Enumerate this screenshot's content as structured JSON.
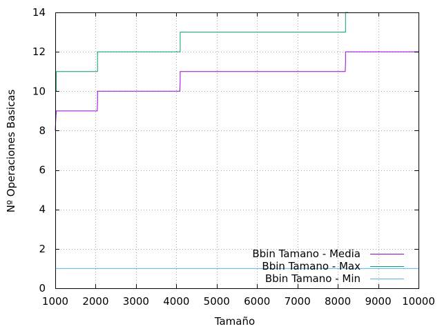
{
  "chart_data": {
    "type": "line",
    "xlabel": "Tamaño",
    "ylabel": "Nº Operaciones Basicas",
    "xlim": [
      1000,
      10000
    ],
    "ylim": [
      0,
      14
    ],
    "xticks": [
      1000,
      2000,
      3000,
      4000,
      5000,
      6000,
      7000,
      8000,
      9000,
      10000
    ],
    "yticks": [
      0,
      2,
      4,
      6,
      8,
      10,
      12,
      14
    ],
    "grid": true,
    "legend_position": "bottom-right",
    "series": [
      {
        "name": "Bbin Tamano - Media",
        "color": "#9400d3",
        "x": [
          1000,
          1000,
          1024,
          1024,
          2040,
          2048,
          2048,
          4088,
          4096,
          4096,
          8184,
          8192,
          8192,
          10000
        ],
        "y": [
          8.0,
          8.0,
          9.0,
          9.0,
          9.0,
          9.5,
          10.0,
          10.0,
          10.5,
          11.0,
          11.0,
          11.5,
          12.0,
          12.0
        ]
      },
      {
        "name": "Bbin Tamano - Max",
        "color": "#009e73",
        "x": [
          1000,
          1000,
          1024,
          1024,
          2048,
          2048,
          4096,
          4096,
          8192,
          8192,
          8250
        ],
        "y": [
          10,
          10,
          10,
          11,
          11,
          12,
          12,
          13,
          13,
          14,
          14
        ]
      },
      {
        "name": "Bbin Tamano - Min",
        "color": "#56b4e9",
        "x": [
          1000,
          10000
        ],
        "y": [
          1,
          1
        ]
      }
    ]
  }
}
